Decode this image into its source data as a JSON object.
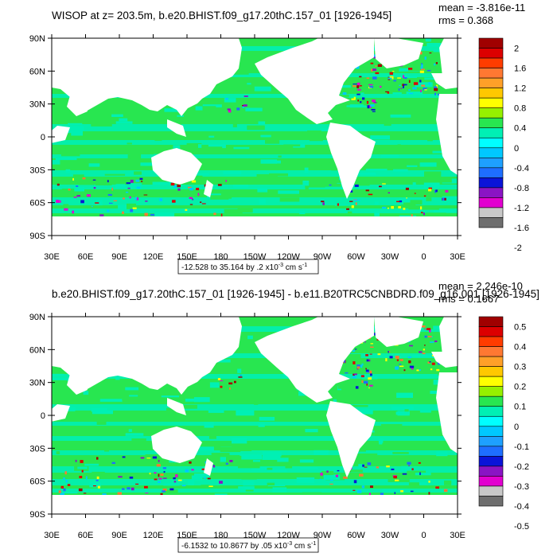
{
  "chart_data": [
    {
      "type": "heatmap",
      "title": "WISOP at z= 203.5m, b.e20.BHIST.f09_g17.20thC.157_01 [1926-1945]",
      "stats": {
        "mean": "mean = -3.816e-11",
        "rms": "rms = 0.368"
      },
      "xlabel": "",
      "ylabel": "",
      "x_ticks": [
        "30E",
        "60E",
        "90E",
        "120E",
        "150E",
        "180",
        "150W",
        "120W",
        "90W",
        "60W",
        "30W",
        "0",
        "30E"
      ],
      "y_ticks": [
        "90N",
        "60N",
        "30N",
        "0",
        "30S",
        "60S",
        "90S"
      ],
      "colorbar_labels": [
        "2",
        "1.6",
        "1.2",
        "0.8",
        "0.4",
        "0",
        "-0.4",
        "-0.8",
        "-1.2",
        "-1.6",
        "-2"
      ],
      "colorbar_range": [
        -2,
        2
      ],
      "info_box": "-12.528 to 35.164 by .2 x10",
      "info_exponent": "-3",
      "info_units": " cm s",
      "info_units_exp": "-1"
    },
    {
      "type": "heatmap",
      "title": "b.e20.BHIST.f09_g17.20thC.157_01 [1926-1945] - b.e11.B20TRC5CNBDRD.f09_g16.001 [1926-1945]",
      "stats": {
        "mean": "mean = 2.246e-10",
        "rms": "rms = 0.1667"
      },
      "xlabel": "",
      "ylabel": "",
      "x_ticks": [
        "30E",
        "60E",
        "90E",
        "120E",
        "150E",
        "180",
        "150W",
        "120W",
        "90W",
        "60W",
        "30W",
        "0",
        "30E"
      ],
      "y_ticks": [
        "90N",
        "60N",
        "30N",
        "0",
        "30S",
        "60S",
        "90S"
      ],
      "colorbar_labels": [
        "0.5",
        "0.4",
        "0.3",
        "0.2",
        "0.1",
        "0",
        "-0.1",
        "-0.2",
        "-0.3",
        "-0.4",
        "-0.5"
      ],
      "colorbar_range": [
        -0.5,
        0.5
      ],
      "info_box": "-6.1532 to 10.8677 by .05 x10",
      "info_exponent": "-3",
      "info_units": " cm s",
      "info_units_exp": "-1"
    }
  ],
  "colorbar_colors": [
    "#6e6e6e",
    "#c8c8c8",
    "#e200d0",
    "#8a14c4",
    "#0a14d8",
    "#1e6eff",
    "#1ea0ff",
    "#00c8ff",
    "#00ffff",
    "#00f0b4",
    "#28e650",
    "#96f000",
    "#ffff00",
    "#ffc800",
    "#ffa028",
    "#ff7832",
    "#ff3c00",
    "#dc0000",
    "#a00000"
  ],
  "colors": {
    "ocean": "#28e650",
    "land": "#ffffff",
    "axis": "#000000"
  }
}
